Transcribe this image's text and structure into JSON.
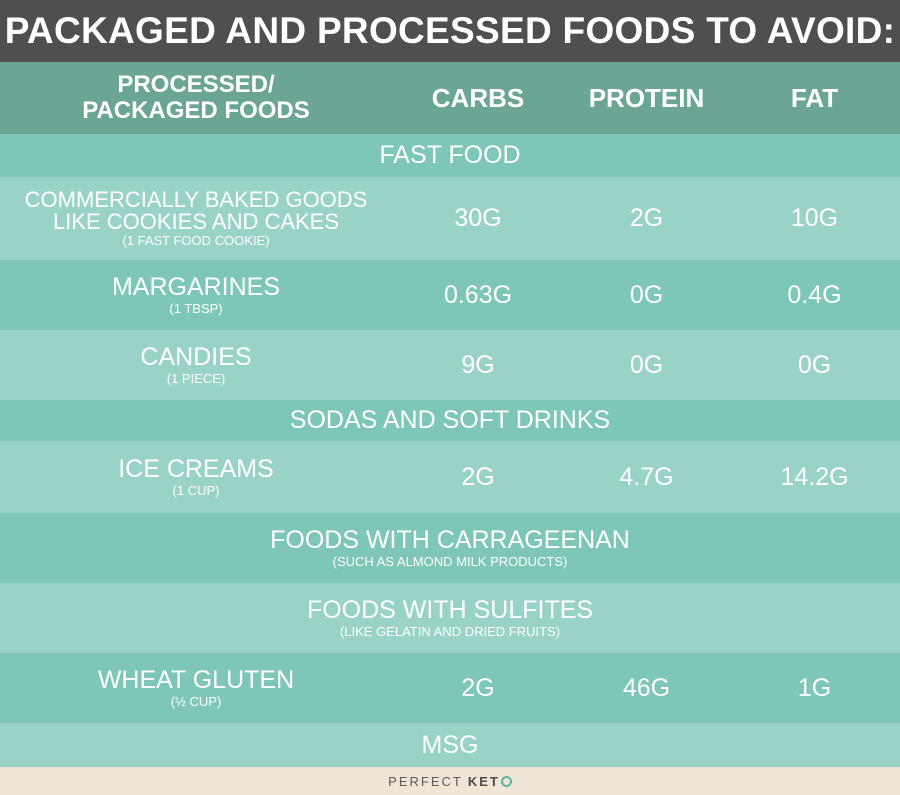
{
  "title": "PACKAGED AND PROCESSED FOODS TO AVOID:",
  "header": {
    "col0": "PROCESSED/\nPACKAGED FOODS",
    "col1": "CARBS",
    "col2": "PROTEIN",
    "col3": "FAT"
  },
  "rows": [
    {
      "label": "FAST FOOD"
    },
    {
      "label": "COMMERCIALLY BAKED GOODS LIKE COOKIES AND CAKES",
      "serving": "(1 FAST FOOD COOKIE)",
      "carbs": "30G",
      "protein": "2G",
      "fat": "10G"
    },
    {
      "label": "MARGARINES",
      "serving": "(1 TBSP)",
      "carbs": "0.63G",
      "protein": "0G",
      "fat": "0.4G"
    },
    {
      "label": "CANDIES",
      "serving": "(1 PIECE)",
      "carbs": "9G",
      "protein": "0G",
      "fat": "0G"
    },
    {
      "label": "SODAS AND SOFT DRINKS"
    },
    {
      "label": "ICE CREAMS",
      "serving": "(1 CUP)",
      "carbs": "2G",
      "protein": "4.7G",
      "fat": "14.2G"
    },
    {
      "label": "FOODS WITH CARRAGEENAN",
      "note": "(SUCH AS ALMOND MILK PRODUCTS)"
    },
    {
      "label": "FOODS WITH SULFITES",
      "note": "(LIKE GELATIN AND DRIED FRUITS)"
    },
    {
      "label": "WHEAT GLUTEN",
      "serving": "(½ CUP)",
      "carbs": "2G",
      "protein": "46G",
      "fat": "1G"
    },
    {
      "label": "MSG"
    }
  ],
  "footer": {
    "brand_light": "PERFECT",
    "brand_strong": "KET"
  },
  "colors": {
    "title_bg": "#4f4f51",
    "header_bg": "#6aa596",
    "row_dark": "#7ec6b8",
    "row_light": "#99d3c7",
    "footer_bg": "#f0e6d7",
    "accent": "#5fb3a3"
  }
}
